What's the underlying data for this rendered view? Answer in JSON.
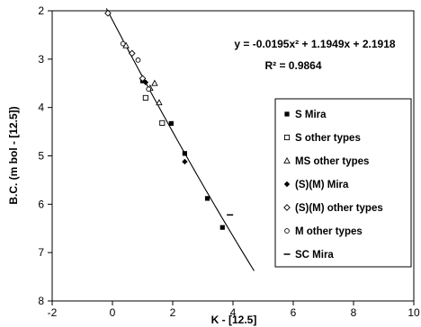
{
  "chart_data": {
    "type": "scatter",
    "xlabel": "K - [12.5]",
    "ylabel": "B.C. (m bol - [12.5])",
    "xlim": [
      -2,
      10
    ],
    "ylim": [
      2,
      8
    ],
    "y_inverted": true,
    "xticks": [
      "-2",
      "0",
      "2",
      "4",
      "6",
      "8",
      "10"
    ],
    "yticks": [
      "2",
      "3",
      "4",
      "5",
      "6",
      "7",
      "8"
    ],
    "grid": false,
    "legend_position": "right",
    "annotation": {
      "equation": "y = -0.0195x² + 1.1949x + 2.1918",
      "r2": "R² = 0.9864"
    },
    "fit": {
      "a": -0.0195,
      "b": 1.1949,
      "c": 2.1918,
      "x_range": [
        -0.2,
        4.7
      ]
    },
    "series": [
      {
        "name": "S Mira",
        "marker": "square-filled",
        "points": [
          [
            1.0,
            3.45
          ],
          [
            1.95,
            4.33
          ],
          [
            2.4,
            4.95
          ],
          [
            3.15,
            5.88
          ],
          [
            3.65,
            6.48
          ]
        ]
      },
      {
        "name": "S other types",
        "marker": "square-open",
        "points": [
          [
            1.1,
            3.8
          ],
          [
            1.65,
            4.32
          ]
        ]
      },
      {
        "name": "MS other types",
        "marker": "triangle-open",
        "points": [
          [
            0.45,
            2.72
          ],
          [
            1.25,
            3.6
          ],
          [
            1.4,
            3.5
          ],
          [
            1.55,
            3.9
          ]
        ]
      },
      {
        "name": "(S)(M) Mira",
        "marker": "diamond-filled",
        "points": [
          [
            1.1,
            3.48
          ],
          [
            2.4,
            5.12
          ]
        ]
      },
      {
        "name": "(S)(M) other types",
        "marker": "diamond-open",
        "points": [
          [
            -0.15,
            2.05
          ],
          [
            0.65,
            2.88
          ],
          [
            1.0,
            3.4
          ]
        ]
      },
      {
        "name": "M other types",
        "marker": "circle-open",
        "points": [
          [
            0.35,
            2.68
          ],
          [
            0.85,
            3.02
          ],
          [
            1.2,
            3.62
          ]
        ]
      },
      {
        "name": "SC Mira",
        "marker": "dash",
        "points": [
          [
            3.9,
            6.22
          ]
        ]
      }
    ]
  }
}
